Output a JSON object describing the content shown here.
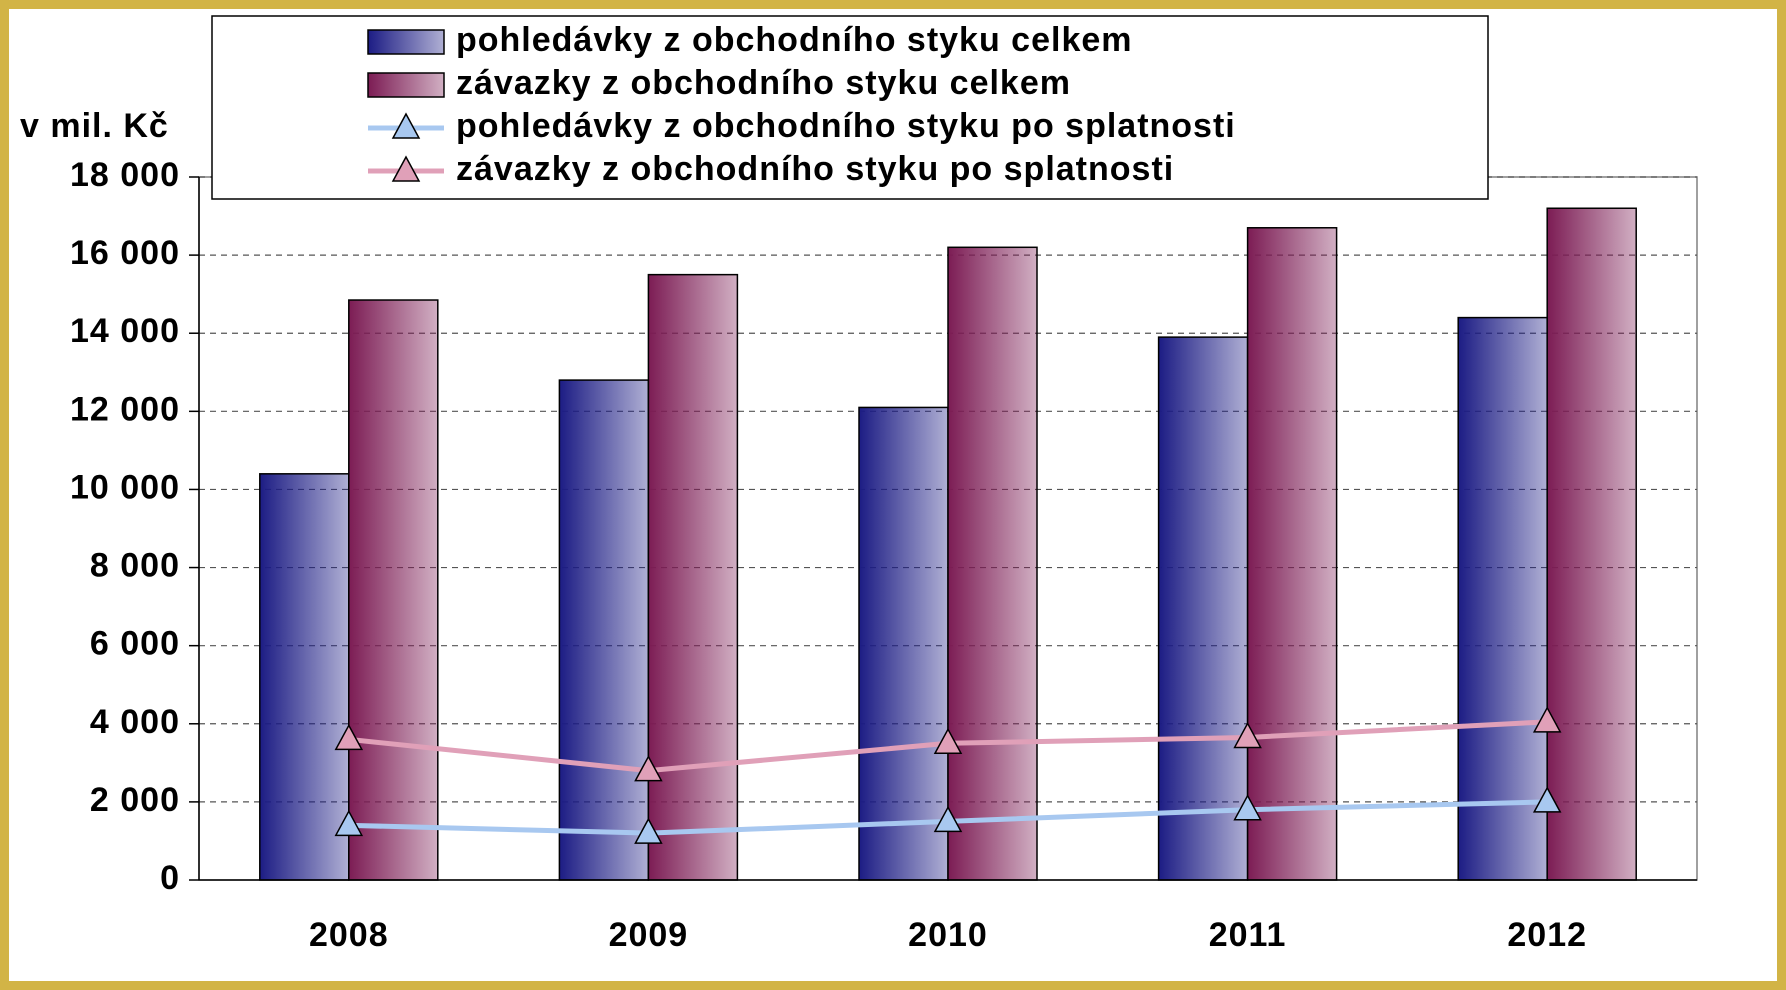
{
  "chart_data": {
    "type": "bar",
    "ylabel": "v mil. Kč",
    "categories": [
      "2008",
      "2009",
      "2010",
      "2011",
      "2012"
    ],
    "series": [
      {
        "name": "pohledávky z obchodního styku celkem",
        "type": "bar",
        "color": "#1c1c84",
        "values": [
          10400,
          12800,
          12100,
          13900,
          14400
        ]
      },
      {
        "name": "závazky z obchodního styku celkem",
        "type": "bar",
        "color": "#7c1c54",
        "values": [
          14850,
          15500,
          16200,
          16700,
          17200
        ]
      },
      {
        "name": "pohledávky z obchodního styku po splatnosti",
        "type": "line",
        "color": "#a8c8f0",
        "values": [
          1400,
          1200,
          1500,
          1800,
          2000
        ]
      },
      {
        "name": "závazky z obchodního styku po splatnosti",
        "type": "line",
        "color": "#e0a0b8",
        "values": [
          3600,
          2800,
          3500,
          3650,
          4050
        ]
      }
    ],
    "ylim": [
      0,
      18000
    ],
    "yticks": [
      0,
      {
        "value": 2000,
        "label": "2 000"
      },
      {
        "value": 4000,
        "label": "4 000"
      },
      {
        "value": 6000,
        "label": "6 000"
      },
      {
        "value": 8000,
        "label": "8 000"
      },
      {
        "value": 10000,
        "label": "10 000"
      },
      {
        "value": 12000,
        "label": "12 000"
      },
      {
        "value": 14000,
        "label": "14 000"
      },
      {
        "value": 16000,
        "label": "16 000"
      },
      {
        "value": 18000,
        "label": "18 000"
      }
    ],
    "grid": true,
    "legend": "top"
  }
}
